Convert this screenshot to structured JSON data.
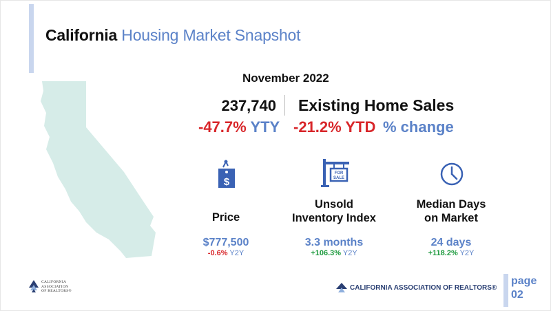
{
  "header": {
    "title_part1": "California",
    "title_part2": "Housing Market Snapshot"
  },
  "report": {
    "date": "November 2022"
  },
  "sales": {
    "value": "237,740",
    "label": "Existing Home Sales",
    "yty_value": "-47.7%",
    "yty_unit": "YTY",
    "ytd": "-21.2% YTD",
    "pct_change_label": "% change"
  },
  "metrics": [
    {
      "label_line1": "Price",
      "label_line2": "",
      "value": "$777,500",
      "change": "-0.6%",
      "change_unit": "Y2Y",
      "icon": "price-tag-icon"
    },
    {
      "label_line1": "Unsold",
      "label_line2": "Inventory Index",
      "value": "3.3 months",
      "change": "+106.3%",
      "change_unit": "Y2Y",
      "icon": "for-sale-sign-icon"
    },
    {
      "label_line1": "Median Days",
      "label_line2": "on Market",
      "value": "24 days",
      "change": "+118.2%",
      "change_unit": "Y2Y",
      "icon": "clock-icon"
    }
  ],
  "footer": {
    "left_logo_lines": [
      "CALIFORNIA",
      "ASSOCIATION",
      "OF REALTORS®"
    ],
    "right_logo_text": "CALIFORNIA ASSOCIATION OF REALTORS®",
    "page_word": "page",
    "page_number": "02"
  },
  "colors": {
    "accent_blue": "#5b82c8",
    "negative_red": "#d8262a",
    "positive_green": "#1e9a3e",
    "map_fill": "#d6ece8",
    "accent_bar": "#c9d6ee",
    "logo_navy": "#2a3f73"
  }
}
